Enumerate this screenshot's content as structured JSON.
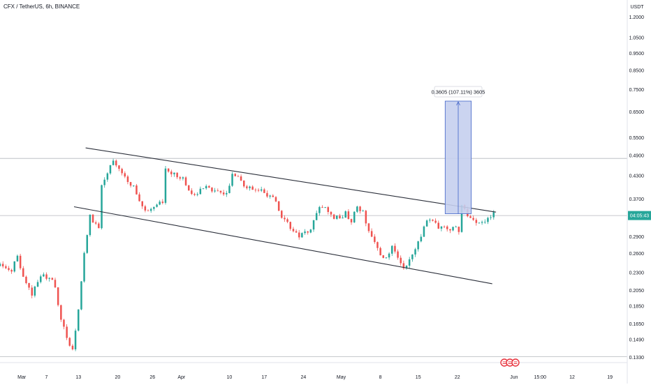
{
  "header": {
    "symbol_title": "CFX / TetherUS, 6h, BINANCE",
    "currency": "USDT"
  },
  "colors": {
    "up": "#26a69a",
    "down": "#ef5350",
    "trendline": "#2a2e39",
    "grid": "#e0e3eb",
    "axis_text": "#131722",
    "price_badge": "#26a69a",
    "measure_fill": "#c5cfee",
    "measure_stroke": "#3f63c8",
    "events": "#e7303b"
  },
  "price_badge": {
    "price": 0.3325,
    "label": "04:05:43"
  },
  "horizontal_lines": [
    0.481,
    0.3325,
    0.1335
  ],
  "measure_tool": {
    "label": "0.3605 (107.11%) 3605",
    "x_start": 153.3,
    "x_end": 162.3,
    "price_low": 0.3365,
    "price_high": 0.697
  },
  "chart_data": {
    "type": "candlestick",
    "title": "CFX / TetherUS, 6h, BINANCE",
    "x_unit": "candle index (6h bars)",
    "y_scale": "log",
    "ylim": [
      0.1285,
      1.34
    ],
    "xlim": [
      0,
      216
    ],
    "y_ticks": [
      1.2,
      1.05,
      0.95,
      0.85,
      0.75,
      0.65,
      0.55,
      0.49,
      0.43,
      0.37,
      0.29,
      0.26,
      0.23,
      0.205,
      0.185,
      0.165,
      0.149,
      0.133
    ],
    "y_tick_labels": [
      "1.2000",
      "1.0500",
      "0.9500",
      "0.8500",
      "0.7500",
      "0.6500",
      "0.5500",
      "0.4900",
      "0.4300",
      "0.3700",
      "0.2900",
      "0.2600",
      "0.2300",
      "0.2050",
      "0.1850",
      "0.1650",
      "0.1490",
      "0.1330"
    ],
    "x_ticks": [
      {
        "x": 7.5,
        "label": "Mar"
      },
      {
        "x": 16.0,
        "label": "7"
      },
      {
        "x": 27.0,
        "label": "13"
      },
      {
        "x": 40.5,
        "label": "20"
      },
      {
        "x": 52.5,
        "label": "26"
      },
      {
        "x": 62.5,
        "label": "Apr"
      },
      {
        "x": 79.0,
        "label": "10"
      },
      {
        "x": 91.0,
        "label": "17"
      },
      {
        "x": 104.5,
        "label": "24"
      },
      {
        "x": 117.5,
        "label": "May"
      },
      {
        "x": 131.0,
        "label": "8"
      },
      {
        "x": 144.0,
        "label": "15"
      },
      {
        "x": 157.5,
        "label": "22"
      },
      {
        "x": 177.0,
        "label": "Jun"
      },
      {
        "x": 186.0,
        "label": "15:00"
      },
      {
        "x": 197.0,
        "label": "12"
      },
      {
        "x": 210.0,
        "label": "19"
      }
    ],
    "anchors": [
      [
        0,
        0.24
      ],
      [
        4,
        0.232
      ],
      [
        6,
        0.258
      ],
      [
        8,
        0.222
      ],
      [
        11,
        0.2
      ],
      [
        14,
        0.225
      ],
      [
        17,
        0.223
      ],
      [
        19,
        0.21
      ],
      [
        21,
        0.17
      ],
      [
        24,
        0.145
      ],
      [
        25,
        0.139
      ],
      [
        27,
        0.18
      ],
      [
        29,
        0.26
      ],
      [
        31,
        0.33
      ],
      [
        34,
        0.305
      ],
      [
        35,
        0.41
      ],
      [
        37,
        0.44
      ],
      [
        39,
        0.47
      ],
      [
        41,
        0.452
      ],
      [
        43,
        0.425
      ],
      [
        46,
        0.4
      ],
      [
        48,
        0.37
      ],
      [
        50,
        0.345
      ],
      [
        52,
        0.343
      ],
      [
        54,
        0.358
      ],
      [
        56,
        0.362
      ],
      [
        57,
        0.45
      ],
      [
        59,
        0.44
      ],
      [
        61,
        0.43
      ],
      [
        63,
        0.42
      ],
      [
        65,
        0.395
      ],
      [
        67,
        0.38
      ],
      [
        69,
        0.395
      ],
      [
        71,
        0.408
      ],
      [
        73,
        0.388
      ],
      [
        76,
        0.39
      ],
      [
        78,
        0.38
      ],
      [
        80,
        0.44
      ],
      [
        82,
        0.425
      ],
      [
        84,
        0.405
      ],
      [
        87,
        0.395
      ],
      [
        90,
        0.39
      ],
      [
        93,
        0.375
      ],
      [
        95,
        0.365
      ],
      [
        97,
        0.328
      ],
      [
        99,
        0.318
      ],
      [
        101,
        0.3
      ],
      [
        103,
        0.293
      ],
      [
        105,
        0.296
      ],
      [
        107,
        0.3
      ],
      [
        109,
        0.342
      ],
      [
        111,
        0.355
      ],
      [
        113,
        0.34
      ],
      [
        115,
        0.33
      ],
      [
        117,
        0.327
      ],
      [
        119,
        0.338
      ],
      [
        121,
        0.322
      ],
      [
        123,
        0.35
      ],
      [
        125,
        0.34
      ],
      [
        127,
        0.3
      ],
      [
        129,
        0.28
      ],
      [
        131,
        0.255
      ],
      [
        133,
        0.253
      ],
      [
        135,
        0.27
      ],
      [
        137,
        0.255
      ],
      [
        139,
        0.238
      ],
      [
        141,
        0.25
      ],
      [
        143,
        0.27
      ],
      [
        145,
        0.293
      ],
      [
        147,
        0.32
      ],
      [
        149,
        0.325
      ],
      [
        151,
        0.308
      ],
      [
        153,
        0.31
      ],
      [
        155,
        0.305
      ],
      [
        157,
        0.312
      ],
      [
        158,
        0.3
      ],
      [
        159,
        0.355
      ],
      [
        160,
        0.35
      ],
      [
        161,
        0.33
      ],
      [
        163,
        0.325
      ],
      [
        165,
        0.318
      ],
      [
        167,
        0.322
      ],
      [
        169,
        0.33
      ],
      [
        170,
        0.336
      ]
    ],
    "annotations": [
      {
        "type": "trendline",
        "name": "upper channel line",
        "points": [
          [
            29.5,
            0.515
          ],
          [
            170.8,
            0.34
          ]
        ]
      },
      {
        "type": "trendline",
        "name": "lower channel line",
        "points": [
          [
            25.5,
            0.352
          ],
          [
            169.5,
            0.214
          ]
        ]
      }
    ]
  }
}
